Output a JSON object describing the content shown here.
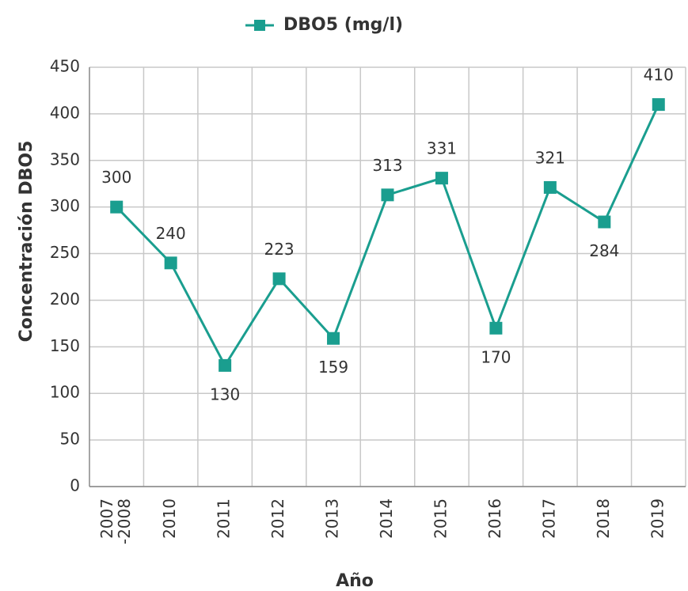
{
  "chart_data": {
    "type": "line",
    "x_label": "Año",
    "y_label": "Concentración DBO5",
    "categories": [
      "2007\n-2008",
      "2010",
      "2011",
      "2012",
      "2013",
      "2014",
      "2015",
      "2016",
      "2017",
      "2018",
      "2019"
    ],
    "series": [
      {
        "name": "DBO5 (mg/l)",
        "color": "#1a9e8f",
        "values": [
          300,
          240,
          130,
          223,
          159,
          313,
          331,
          170,
          321,
          284,
          410
        ]
      }
    ],
    "ylim": [
      0,
      450
    ],
    "yticks": [
      0,
      50,
      100,
      150,
      200,
      250,
      300,
      350,
      400,
      450
    ],
    "grid": true,
    "legend": "top"
  }
}
